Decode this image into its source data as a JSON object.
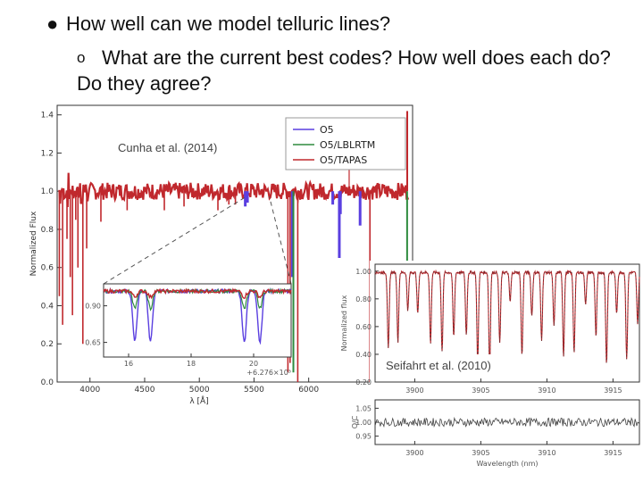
{
  "slide": {
    "bullet1": "How well can we model telluric lines?",
    "bullet1_marker": "●",
    "bullet2": "What are the current best codes? How well does each do? Do they agree?",
    "bullet2_marker": "o"
  },
  "colors": {
    "o5": "#5a3fe0",
    "lblrtm": "#2e8b3e",
    "tapas": "#c0282d",
    "residual": "#444444"
  },
  "chart_data": [
    {
      "type": "line",
      "annotation": "Cunha et al. (2014)",
      "xlabel": "λ [Å]",
      "ylabel": "Normalized Flux",
      "xlim": [
        3700,
        6950
      ],
      "ylim": [
        0,
        1.45
      ],
      "xticks": [
        4000,
        4500,
        5000,
        5500,
        6000
      ],
      "yticks": [
        0.0,
        0.2,
        0.4,
        0.6,
        0.8,
        1.0,
        1.2,
        1.4
      ],
      "legend": {
        "placement": "top-right",
        "entries": [
          "O5",
          "O5/LBLRTM",
          "O5/TAPAS"
        ]
      },
      "series": [
        {
          "name": "O5",
          "lines": [
            [
              5420,
              0.92
            ],
            [
              5440,
              0.94
            ],
            [
              5850,
              0.55
            ],
            [
              6220,
              0.93
            ],
            [
              6280,
              0.65
            ],
            [
              6290,
              0.88
            ],
            [
              6470,
              0.82
            ]
          ]
        },
        {
          "name": "O5/LBLRTM",
          "lines": [
            [
              5860,
              0.05
            ],
            [
              6900,
              0.6
            ]
          ]
        },
        {
          "name": "O5/TAPAS",
          "lines": [
            [
              3720,
              0.45
            ],
            [
              3750,
              0.3
            ],
            [
              3790,
              0.75
            ],
            [
              3820,
              0.55
            ],
            [
              3840,
              0.35
            ],
            [
              3870,
              0.85
            ],
            [
              3890,
              0.6
            ],
            [
              3935,
              0.2
            ],
            [
              3970,
              0.7
            ],
            [
              4100,
              0.84
            ],
            [
              4340,
              0.9
            ],
            [
              4680,
              0.9
            ],
            [
              4860,
              0.92
            ],
            [
              5170,
              0.9
            ],
            [
              5270,
              0.93
            ],
            [
              5330,
              0.93
            ],
            [
              5810,
              0.05
            ],
            [
              5830,
              0.1
            ],
            [
              5900,
              0.0
            ],
            [
              6560,
              0.0
            ]
          ]
        }
      ],
      "inset": {
        "xticks": [
          16,
          18,
          20
        ],
        "x_offset_label": "+6.276×10³",
        "yticks": [
          0.65,
          0.9
        ],
        "dips_x": [
          16.2,
          16.7,
          19.7,
          20.2
        ]
      }
    },
    {
      "type": "line",
      "annotation": "Seifahrt et al. (2010)",
      "xlabel": "Wavelength (nm)",
      "ylabel": "Normalized flux",
      "xlim": [
        3897,
        3917
      ],
      "xticks": [
        3900,
        3905,
        3910,
        3915
      ],
      "top_yticks": [
        0.2,
        0.4,
        0.6,
        0.8,
        1.0
      ],
      "bottom_ylabel": "O/C",
      "bottom_yticks": [
        0.95,
        1.0,
        1.05
      ]
    }
  ]
}
